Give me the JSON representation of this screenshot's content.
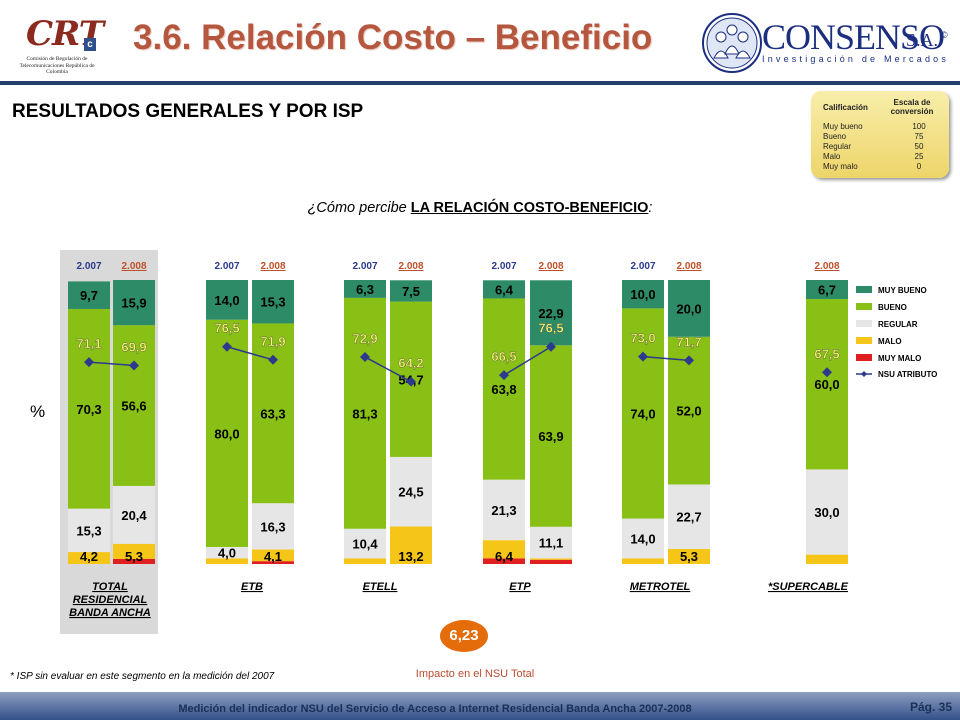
{
  "header": {
    "title": "3.6. Relación Costo – Beneficio",
    "crt_logo_text": "CRT",
    "crt_sub": "Comisión de Regulación de Telecomunicaciones República de Colombia",
    "consenso_name": "CONSENSO",
    "consenso_sa": "S.A.",
    "consenso_sub": "Investigación de Mercados"
  },
  "subtitle": "RESULTADOS GENERALES Y POR ISP",
  "scale": {
    "header_left": "Calificación",
    "header_right": "Escala de conversión",
    "rows": [
      {
        "label": "Muy bueno",
        "value": "100"
      },
      {
        "label": "Bueno",
        "value": "75"
      },
      {
        "label": "Regular",
        "value": "50"
      },
      {
        "label": "Malo",
        "value": "25"
      },
      {
        "label": "Muy malo",
        "value": "0"
      }
    ]
  },
  "question": {
    "prefix": "¿Cómo percibe ",
    "bold": "LA RELACIÓN COSTO-BENEFICIO",
    "suffix": ":"
  },
  "axis_unit": "%",
  "chart_data": {
    "type": "bar",
    "stacked": true,
    "ylim": [
      0,
      100
    ],
    "series_names": [
      "MUY BUENO",
      "BUENO",
      "REGULAR",
      "MALO",
      "MUY MALO",
      "NSU ATRIBUTO"
    ],
    "colors": {
      "muy_bueno": "#2e8b67",
      "bueno": "#88c016",
      "regular": "#e6e6e6",
      "malo": "#f5c518",
      "muy_malo": "#e02020",
      "nsu": "#2b3a8c"
    },
    "groups": [
      {
        "label": "TOTAL RESIDENCIAL BANDA ANCHA",
        "highlight": true,
        "bars": [
          {
            "year": "2.007",
            "muy_malo": 0,
            "malo": 4.2,
            "regular": 15.3,
            "bueno": 70.3,
            "muy_bueno": 9.7,
            "nsu": 71.1,
            "show": [
              "4,2",
              "15,3",
              "70,3",
              "9,7"
            ],
            "nsu_label": "71,1"
          },
          {
            "year": "2.008",
            "muy_malo": 1.8,
            "malo": 5.3,
            "regular": 20.4,
            "bueno": 56.6,
            "muy_bueno": 15.9,
            "nsu": 69.9,
            "show": [
              "5,3",
              "20,4",
              "56,6",
              "15,9"
            ],
            "nsu_label": "69,9"
          }
        ]
      },
      {
        "label": "ETB",
        "bars": [
          {
            "year": "2.007",
            "muy_malo": 0,
            "malo": 2.0,
            "regular": 4.0,
            "bueno": 80.0,
            "muy_bueno": 14.0,
            "nsu": 76.5,
            "show": [
              "",
              "4,0",
              "80,0",
              "14,0"
            ],
            "nsu_label": "76,5"
          },
          {
            "year": "2.008",
            "muy_malo": 1.0,
            "malo": 4.1,
            "regular": 16.3,
            "bueno": 63.3,
            "muy_bueno": 15.3,
            "nsu": 71.9,
            "show": [
              "4,1",
              "16,3",
              "63,3",
              "15,3"
            ],
            "nsu_label": "71,9"
          }
        ]
      },
      {
        "label": "ETELL",
        "bars": [
          {
            "year": "2.007",
            "muy_malo": 0,
            "malo": 2.0,
            "regular": 10.4,
            "bueno": 81.3,
            "muy_bueno": 6.3,
            "nsu": 72.9,
            "show": [
              "",
              "10,4",
              "81,3",
              "6,3"
            ],
            "nsu_label": "72,9"
          },
          {
            "year": "2.008",
            "muy_malo": 0,
            "malo": 13.2,
            "regular": 24.5,
            "bueno": 54.7,
            "muy_bueno": 7.5,
            "nsu": 64.2,
            "show": [
              "13,2",
              "24,5",
              "54,7",
              "7,5"
            ],
            "nsu_label": "64,2"
          }
        ]
      },
      {
        "label": "ETP",
        "bars": [
          {
            "year": "2.007",
            "muy_malo": 2.0,
            "malo": 6.4,
            "regular": 21.3,
            "bueno": 63.8,
            "muy_bueno": 6.4,
            "nsu": 66.5,
            "show": [
              "6,4",
              "21,3",
              "63,8",
              "6,4"
            ],
            "nsu_label": "66,5"
          },
          {
            "year": "2.008",
            "muy_malo": 1.5,
            "malo": 0.5,
            "regular": 11.1,
            "bueno": 63.9,
            "muy_bueno": 22.9,
            "nsu": 76.5,
            "show": [
              "",
              "11,1",
              "63,9",
              "22,9"
            ],
            "nsu_label": "76,5"
          }
        ]
      },
      {
        "label": "METROTEL",
        "bars": [
          {
            "year": "2.007",
            "muy_malo": 0,
            "malo": 2.0,
            "regular": 14.0,
            "bueno": 74.0,
            "muy_bueno": 10.0,
            "nsu": 73.0,
            "show": [
              "",
              "14,0",
              "74,0",
              "10,0"
            ],
            "nsu_label": "73,0"
          },
          {
            "year": "2.008",
            "muy_malo": 0,
            "malo": 5.3,
            "regular": 22.7,
            "bueno": 52.0,
            "muy_bueno": 20.0,
            "nsu": 71.7,
            "show": [
              "5,3",
              "22,7",
              "52,0",
              "20,0"
            ],
            "nsu_label": "71,7"
          }
        ]
      },
      {
        "label": "*SUPERCABLE",
        "bars": [
          {
            "year": "2.008",
            "muy_malo": 0,
            "malo": 3.3,
            "regular": 30.0,
            "bueno": 60.0,
            "muy_bueno": 6.7,
            "nsu": 67.5,
            "show": [
              "",
              "30,0",
              "60,0",
              "6,7"
            ],
            "nsu_label": "67,5"
          }
        ]
      }
    ]
  },
  "impact": {
    "value": "6,23",
    "label": "Impacto en el NSU Total"
  },
  "footnote": "* ISP sin evaluar en este segmento en la medición del 2007",
  "footer": {
    "text": "Medición del indicador NSU del Servicio de Acceso a Internet Residencial Banda Ancha 2007-2008",
    "page": "Pág. 35"
  }
}
